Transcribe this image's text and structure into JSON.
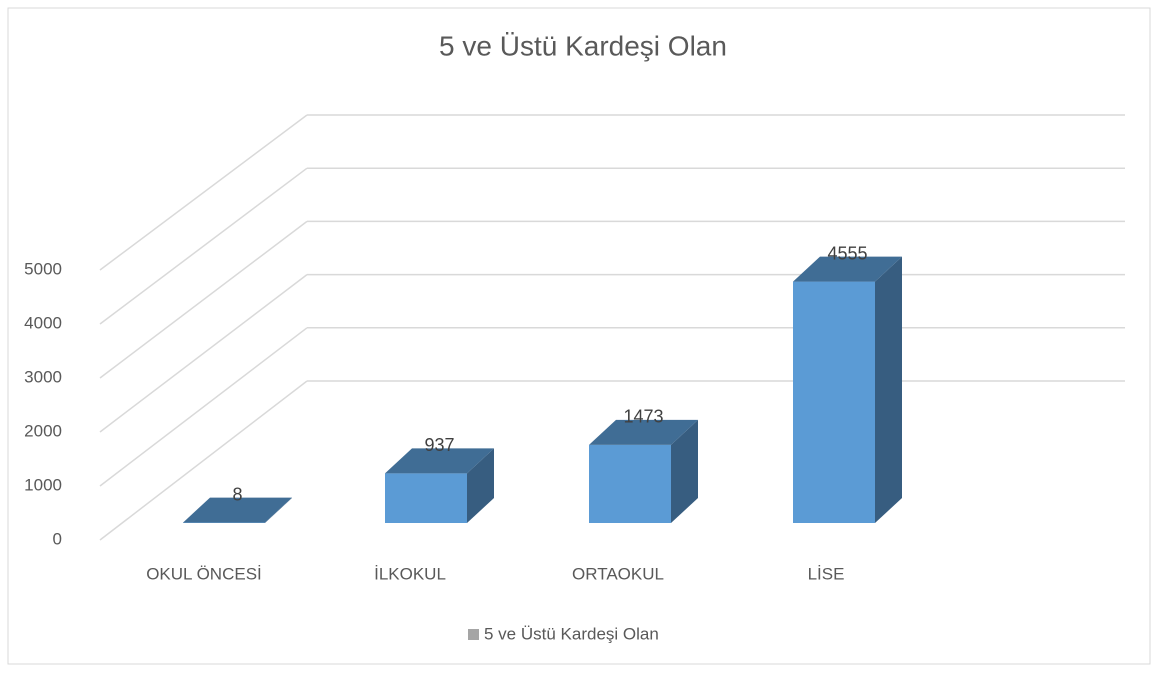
{
  "chart_data": {
    "type": "bar3d",
    "title": "5 ve Üstü Kardeşi Olan",
    "categories": [
      "OKUL ÖNCESİ",
      "İLKOKUL",
      "ORTAOKUL",
      "LİSE"
    ],
    "series": [
      {
        "name": "5 ve Üstü Kardeşi Olan",
        "color": "#5b9bd5",
        "values": [
          8,
          937,
          1473,
          4555
        ]
      }
    ],
    "ylim": [
      0,
      5000
    ],
    "yticks": [
      0,
      1000,
      2000,
      3000,
      4000,
      5000
    ],
    "grid": true,
    "legend": "bottom"
  }
}
